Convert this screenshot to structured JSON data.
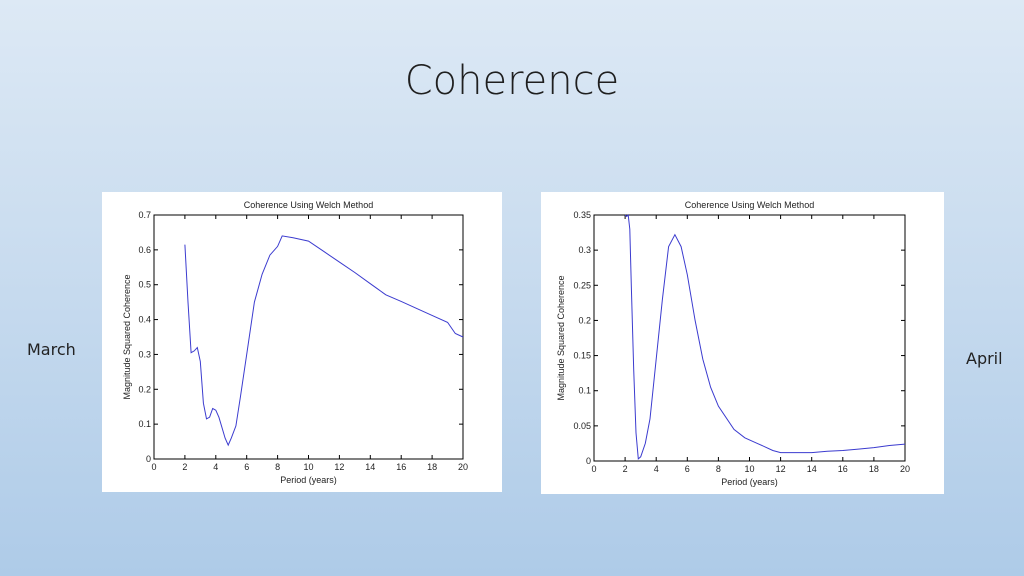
{
  "slide": {
    "title": "Coherence",
    "left_label": "March",
    "right_label": "April"
  },
  "chart_data": [
    {
      "type": "line",
      "title": "Coherence Using Welch Method",
      "xlabel": "Period (years)",
      "ylabel": "Magnitude Squared Coherence",
      "xlim": [
        0,
        20
      ],
      "ylim": [
        0,
        0.7
      ],
      "xticks": [
        "0",
        "2",
        "4",
        "6",
        "8",
        "10",
        "12",
        "14",
        "16",
        "18",
        "20"
      ],
      "yticks": [
        "0",
        "0.1",
        "0.2",
        "0.3",
        "0.4",
        "0.5",
        "0.6",
        "0.7"
      ],
      "grid": false,
      "line_color": "#3b3bcf",
      "x": [
        2.0,
        2.2,
        2.4,
        2.6,
        2.8,
        3.0,
        3.2,
        3.4,
        3.6,
        3.8,
        4.0,
        4.2,
        4.4,
        4.6,
        4.8,
        5.0,
        5.3,
        5.6,
        6.0,
        6.5,
        7.0,
        7.5,
        8.0,
        8.3,
        9.0,
        10.0,
        11.0,
        12.0,
        13.0,
        14.0,
        14.5,
        15.0,
        16.0,
        17.0,
        18.0,
        19.0,
        19.5,
        20.0
      ],
      "y": [
        0.615,
        0.45,
        0.305,
        0.31,
        0.32,
        0.28,
        0.16,
        0.115,
        0.12,
        0.145,
        0.14,
        0.12,
        0.09,
        0.06,
        0.04,
        0.06,
        0.095,
        0.18,
        0.3,
        0.45,
        0.53,
        0.585,
        0.61,
        0.64,
        0.635,
        0.625,
        0.595,
        0.565,
        0.535,
        0.503,
        0.487,
        0.471,
        0.452,
        0.432,
        0.412,
        0.392,
        0.36,
        0.35
      ]
    },
    {
      "type": "line",
      "title": "Coherence Using Welch Method",
      "xlabel": "Period (years)",
      "ylabel": "Magnitude Squared Coherence",
      "xlim": [
        0,
        20
      ],
      "ylim": [
        0,
        0.35
      ],
      "xticks": [
        "0",
        "2",
        "4",
        "6",
        "8",
        "10",
        "12",
        "14",
        "16",
        "18",
        "20"
      ],
      "yticks": [
        "0",
        "0.05",
        "0.1",
        "0.15",
        "0.2",
        "0.25",
        "0.3",
        "0.35"
      ],
      "grid": false,
      "line_color": "#3b3bcf",
      "x": [
        2.0,
        2.1,
        2.2,
        2.3,
        2.4,
        2.55,
        2.7,
        2.85,
        3.0,
        3.3,
        3.6,
        4.0,
        4.4,
        4.8,
        5.2,
        5.6,
        6.0,
        6.5,
        7.0,
        7.5,
        8.0,
        9.0,
        9.7,
        10.5,
        11.0,
        11.5,
        12.0,
        13.0,
        14.0,
        15.0,
        16.0,
        17.0,
        18.0,
        19.0,
        20.0
      ],
      "y": [
        0.35,
        0.348,
        0.35,
        0.33,
        0.25,
        0.13,
        0.04,
        0.003,
        0.006,
        0.025,
        0.06,
        0.145,
        0.23,
        0.305,
        0.322,
        0.305,
        0.265,
        0.2,
        0.145,
        0.105,
        0.078,
        0.045,
        0.033,
        0.025,
        0.02,
        0.015,
        0.012,
        0.012,
        0.012,
        0.014,
        0.015,
        0.017,
        0.019,
        0.022,
        0.024
      ]
    }
  ]
}
